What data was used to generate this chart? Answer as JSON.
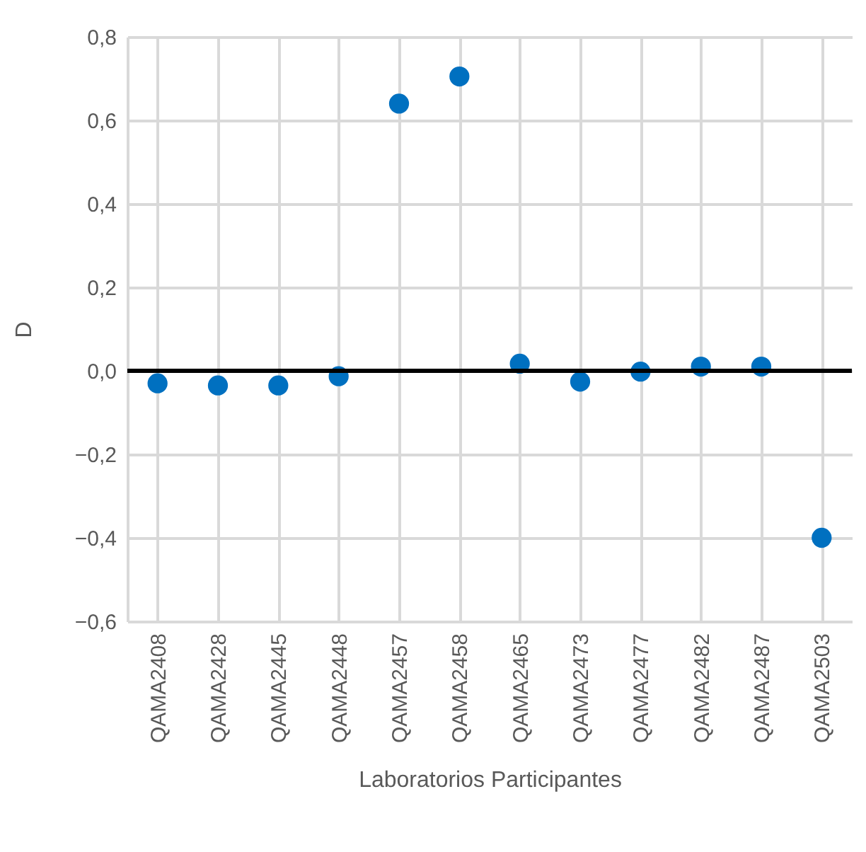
{
  "chart_data": {
    "type": "scatter",
    "xlabel": "Laboratorios Participantes",
    "ylabel": "D",
    "categories": [
      "QAMA2408",
      "QAMA2428",
      "QAMA2445",
      "QAMA2448",
      "QAMA2457",
      "QAMA2458",
      "QAMA2465",
      "QAMA2473",
      "QAMA2477",
      "QAMA2482",
      "QAMA2487",
      "QAMA2503"
    ],
    "series": [
      {
        "color": "#0070c0",
        "values": [
          -0.03,
          -0.035,
          -0.035,
          -0.013,
          0.64,
          0.705,
          0.017,
          -0.026,
          -0.002,
          0.01,
          0.01,
          -0.4
        ]
      }
    ],
    "ylim": [
      -0.6,
      0.8
    ],
    "yticks": [
      {
        "value": -0.6,
        "label": "−0,6"
      },
      {
        "value": -0.4,
        "label": "−0,4"
      },
      {
        "value": -0.2,
        "label": "−0,2"
      },
      {
        "value": 0,
        "label": "0,0"
      },
      {
        "value": 0.2,
        "label": "0,2"
      },
      {
        "value": 0.4,
        "label": "0,4"
      },
      {
        "value": 0.6,
        "label": "0,6"
      },
      {
        "value": 0.8,
        "label": "0,8"
      }
    ],
    "grid": true,
    "marker": "circle",
    "ref_lines": [
      {
        "axis": "y",
        "value": 0,
        "color": "#000000"
      }
    ]
  }
}
